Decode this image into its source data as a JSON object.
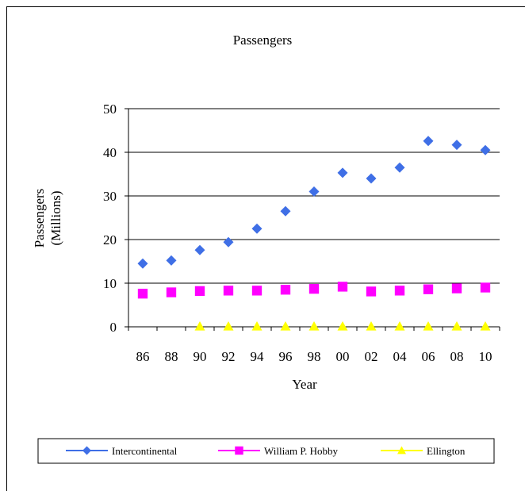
{
  "chart_data": {
    "type": "scatter",
    "title": "Passengers",
    "xlabel": "Year",
    "ylabel_lines": [
      "Passengers",
      "(Millions)"
    ],
    "categories": [
      "86",
      "88",
      "90",
      "92",
      "94",
      "96",
      "98",
      "00",
      "02",
      "04",
      "06",
      "08",
      "10"
    ],
    "ylim": [
      0,
      50
    ],
    "yticks": [
      "0",
      "10",
      "20",
      "30",
      "40",
      "50"
    ],
    "grid": true,
    "legend_position": "bottom",
    "series": [
      {
        "name": "Intercontinental",
        "color": "#3f6fe6",
        "marker": "diamond",
        "values": [
          14.5,
          15.2,
          17.6,
          19.4,
          22.5,
          26.5,
          31.0,
          35.3,
          34.0,
          36.5,
          42.6,
          41.7,
          40.5
        ]
      },
      {
        "name": "William P. Hobby",
        "color": "#ff00ff",
        "marker": "square",
        "values": [
          7.6,
          7.9,
          8.2,
          8.3,
          8.3,
          8.5,
          8.7,
          9.2,
          8.1,
          8.3,
          8.6,
          8.8,
          9.0
        ]
      },
      {
        "name": "Ellington",
        "color": "#ffff00",
        "marker": "triangle",
        "values": [
          null,
          null,
          0.1,
          0.1,
          0.1,
          0.1,
          0.1,
          0.1,
          0.1,
          0.1,
          0.1,
          0.1,
          0.1
        ]
      }
    ]
  }
}
